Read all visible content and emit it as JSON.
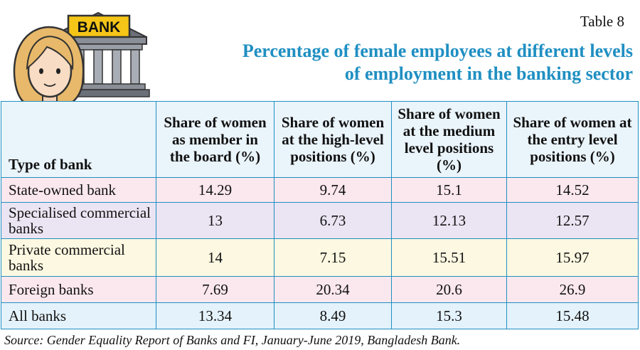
{
  "table_label": "Table 8",
  "title_line1": "Percentage of female employees at different levels",
  "title_line2": "of employment in the banking sector",
  "bank_sign": "BANK",
  "headers": [
    "Type of bank",
    "Share of women as member in the board (%)",
    "Share of women at the high-level positions (%)",
    "Share of women at the medium level positions (%)",
    "Share of women at the entry level positions (%)"
  ],
  "rows": [
    {
      "type": "State-owned bank",
      "board": "14.29",
      "high": "9.74",
      "medium": "15.1",
      "entry": "14.52"
    },
    {
      "type": "Specialised commercial banks",
      "board": "13",
      "high": "6.73",
      "medium": "12.13",
      "entry": "12.57"
    },
    {
      "type": "Private commercial banks",
      "board": "14",
      "high": "7.15",
      "medium": "15.51",
      "entry": "15.97"
    },
    {
      "type": "Foreign banks",
      "board": "7.69",
      "high": "20.34",
      "medium": "20.6",
      "entry": "26.9"
    },
    {
      "type": "All banks",
      "board": "13.34",
      "high": "8.49",
      "medium": "15.3",
      "entry": "15.48"
    }
  ],
  "source": "Source: Gender Equality Report of Banks and FI, January-June 2019, Bangladesh Bank.",
  "colors": {
    "title": "#1f8fc2",
    "border": "#1f8fc2",
    "header_bg": "#eaf4fb",
    "row_pink": "#fbe8ee",
    "row_lavender": "#ebe4f2",
    "row_cream": "#fdf8e1",
    "row_blue": "#e4f2fb"
  },
  "icons": [
    "bank-building-icon",
    "woman-avatar-icon"
  ]
}
